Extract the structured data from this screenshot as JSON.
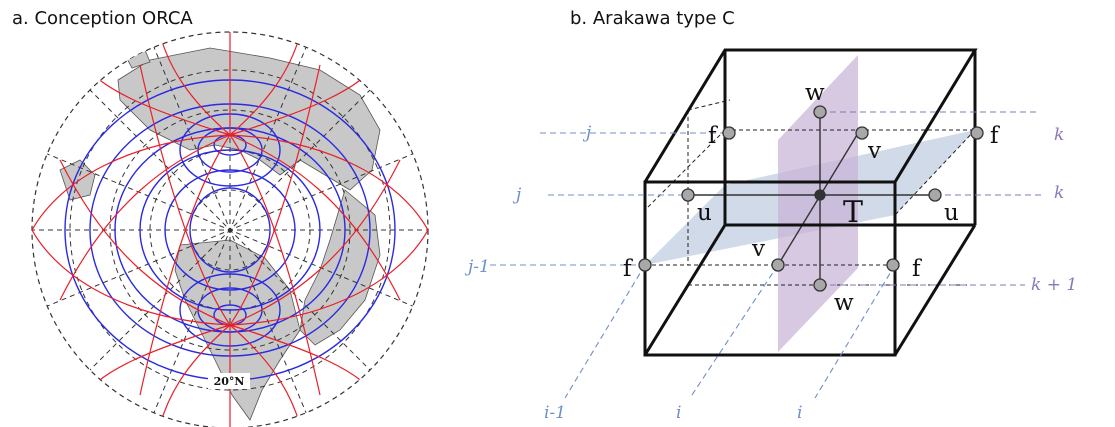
{
  "panel_a": {
    "title": "a. Conception ORCA",
    "latitude_label": "20°N",
    "colors": {
      "grid_red": "#e8202a",
      "grid_blue": "#2a2ae0",
      "land": "#c8c8c8",
      "dashed": "#333333"
    }
  },
  "panel_b": {
    "title": "b. Arakawa type C",
    "points": {
      "w_top": "w",
      "w_bottom": "w",
      "v_back": "v",
      "v_front": "v",
      "u_left": "u",
      "u_right": "u",
      "T": "T",
      "f_back_left": "f",
      "f_back_right": "f",
      "f_front_left": "f",
      "f_front_right": "f"
    },
    "index_labels": {
      "j_back": "j",
      "j_mid": "j",
      "j_minus_1": "j-1",
      "k_top": "k",
      "k_mid": "k",
      "k_plus_1": "k + 1",
      "i_minus_1": "i-1",
      "i_left": "i",
      "i_right": "i"
    },
    "colors": {
      "j_label": "#6f8fc8",
      "k_label": "#8a77b8",
      "i_label": "#6f8fc8",
      "horizontal_plane": "#bccbe0",
      "vertical_plane": "#c8b2d6",
      "point": "#a8a8a8"
    }
  }
}
